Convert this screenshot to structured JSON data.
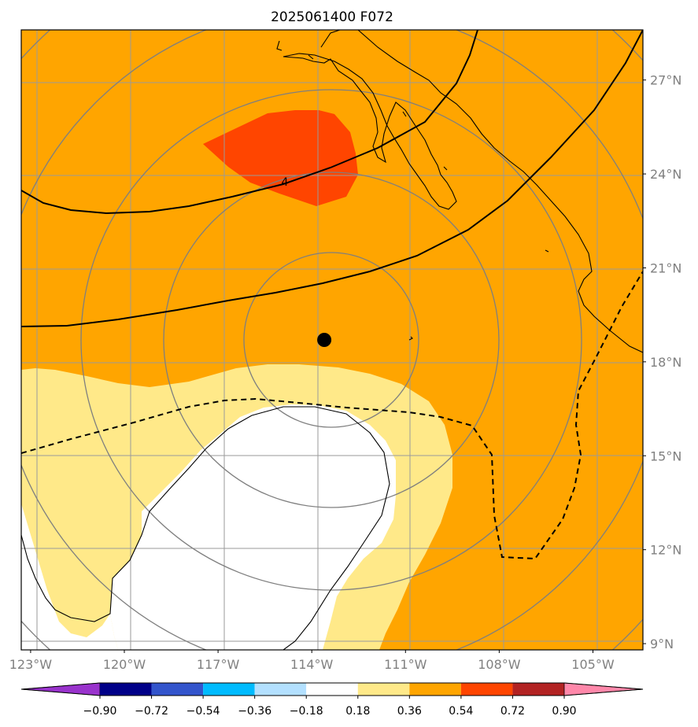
{
  "title": "2025061400 F072",
  "chart_data": {
    "type": "heatmap",
    "title": "2025061400 F072",
    "xlim": [
      -123.3,
      -103.4
    ],
    "ylim": [
      8.8,
      28.6
    ],
    "x_ticks": [
      {
        "value": -123,
        "label": "123°W"
      },
      {
        "value": -120,
        "label": "120°W"
      },
      {
        "value": -117,
        "label": "117°W"
      },
      {
        "value": -114,
        "label": "114°W"
      },
      {
        "value": -111,
        "label": "111°W"
      },
      {
        "value": -108,
        "label": "108°W"
      },
      {
        "value": -105,
        "label": "105°W"
      }
    ],
    "y_ticks": [
      {
        "value": 9,
        "label": "9°N"
      },
      {
        "value": 12,
        "label": "12°N"
      },
      {
        "value": 15,
        "label": "15°N"
      },
      {
        "value": 18,
        "label": "18°N"
      },
      {
        "value": 21,
        "label": "21°N"
      },
      {
        "value": 24,
        "label": "24°N"
      },
      {
        "value": 27,
        "label": "27°N"
      }
    ],
    "grid": true,
    "center_marker": {
      "lon": -113.6,
      "lat": 18.7
    },
    "contour_label": "4",
    "colorbar": {
      "extend": "both",
      "colors": [
        "#9933cc",
        "#000088",
        "#3355cc",
        "#00bbff",
        "#b3e0ff",
        "#ffffff",
        "#ffe989",
        "#ffa500",
        "#ff4500",
        "#b22222",
        "#ff88aa"
      ],
      "boundaries": [
        "−0.90",
        "−0.72",
        "−0.54",
        "−0.36",
        "−0.18",
        "0.18",
        "0.36",
        "0.54",
        "0.72",
        "0.90"
      ]
    }
  }
}
